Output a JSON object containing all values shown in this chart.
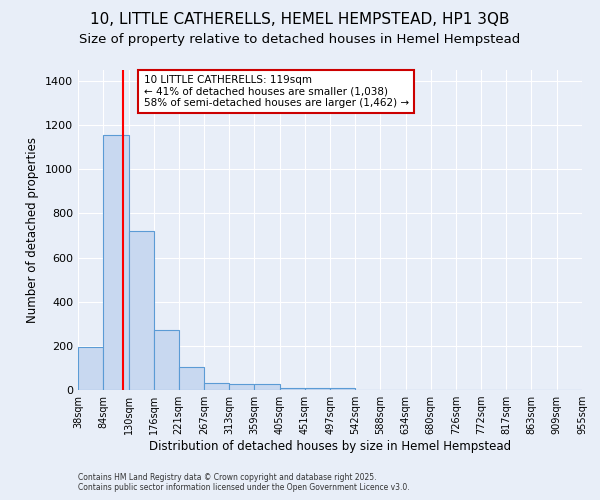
{
  "title1": "10, LITTLE CATHERELLS, HEMEL HEMPSTEAD, HP1 3QB",
  "title2": "Size of property relative to detached houses in Hemel Hempstead",
  "xlabel": "Distribution of detached houses by size in Hemel Hempstead",
  "ylabel": "Number of detached properties",
  "footnote1": "Contains HM Land Registry data © Crown copyright and database right 2025.",
  "footnote2": "Contains public sector information licensed under the Open Government Licence v3.0.",
  "bin_edges": [
    38,
    84,
    130,
    176,
    221,
    267,
    313,
    359,
    405,
    451,
    497,
    542,
    588,
    634,
    680,
    726,
    772,
    817,
    863,
    909,
    955
  ],
  "bar_heights": [
    193,
    1155,
    720,
    270,
    105,
    30,
    25,
    25,
    10,
    10,
    10,
    0,
    0,
    0,
    0,
    0,
    0,
    0,
    0,
    0
  ],
  "bar_color": "#c8d8f0",
  "bar_edge_color": "#5b9bd5",
  "red_line_x": 119,
  "ylim": [
    0,
    1450
  ],
  "annotation_line1": "10 LITTLE CATHERELLS: 119sqm",
  "annotation_line2": "← 41% of detached houses are smaller (1,038)",
  "annotation_line3": "58% of semi-detached houses are larger (1,462) →",
  "annotation_box_color": "white",
  "annotation_box_edge_color": "#cc0000",
  "title_fontsize": 11,
  "subtitle_fontsize": 9.5,
  "axis_label_fontsize": 8.5,
  "tick_fontsize": 7,
  "ytick_fontsize": 8,
  "background_color": "#e8eef8"
}
